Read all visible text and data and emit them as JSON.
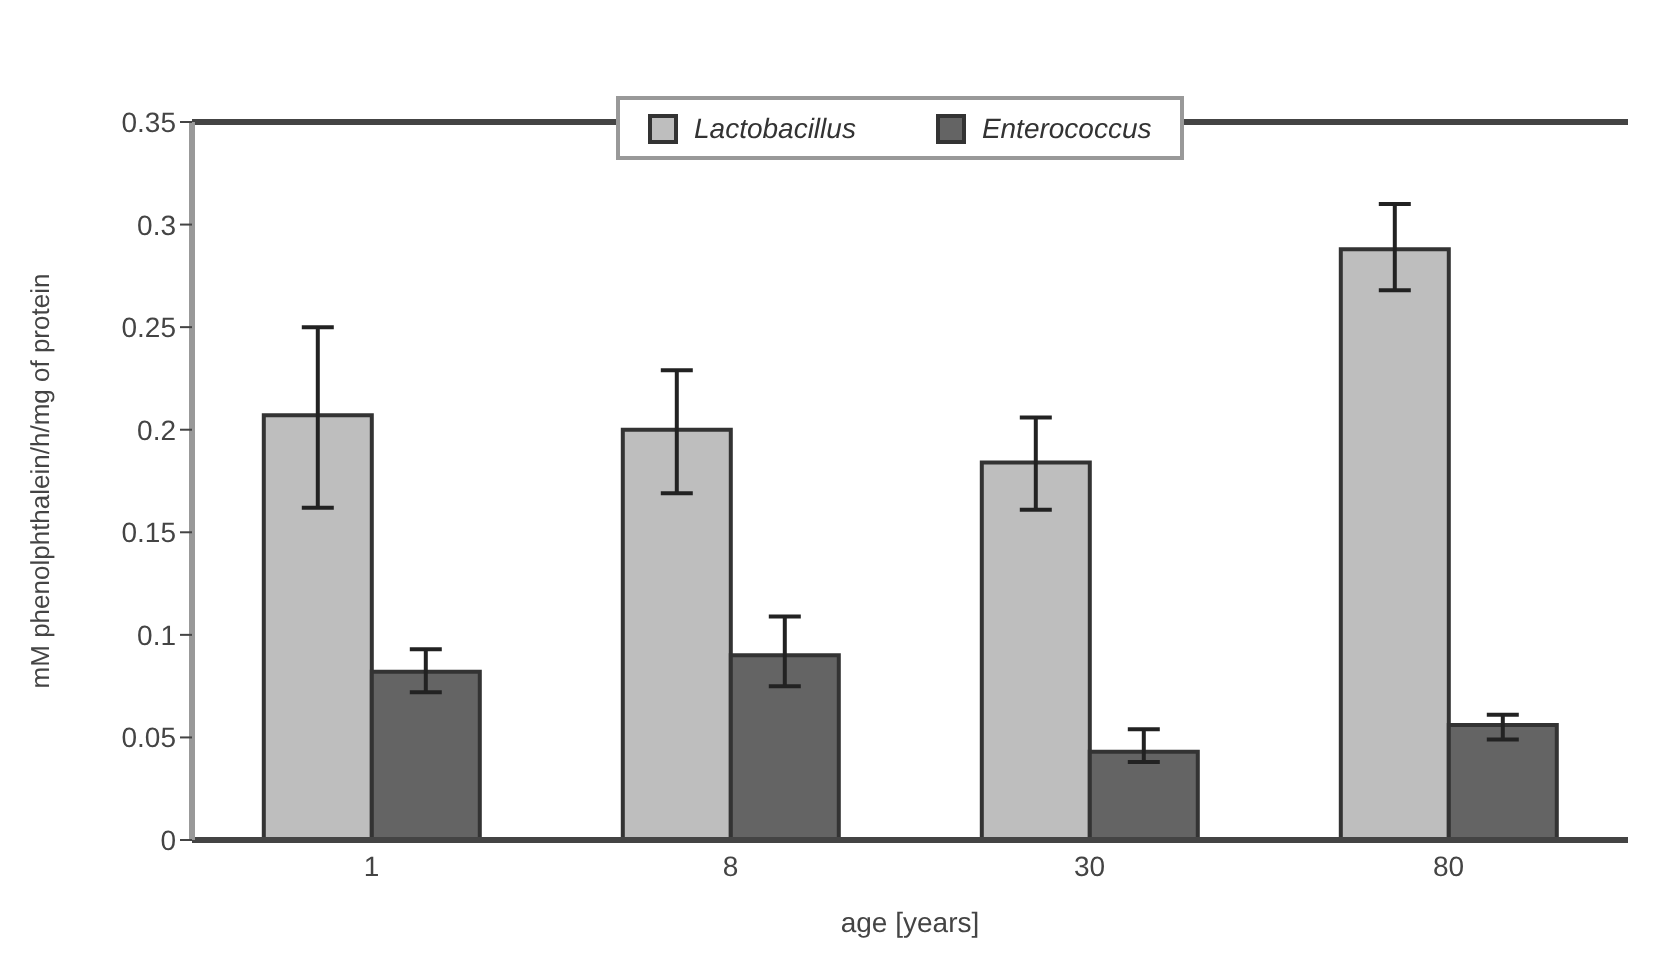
{
  "chart_data": {
    "type": "bar",
    "xlabel": "age [years]",
    "ylabel": "mM phenolphthalein/h/mg of protein",
    "categories": [
      "1",
      "8",
      "30",
      "80"
    ],
    "series": [
      {
        "name": "Lactobacillus",
        "color": "#bebebe",
        "values": [
          0.207,
          0.2,
          0.184,
          0.288
        ],
        "errors": [
          [
            0.162,
            0.25
          ],
          [
            0.169,
            0.229
          ],
          [
            0.161,
            0.206
          ],
          [
            0.268,
            0.31
          ]
        ]
      },
      {
        "name": "Enterococcus",
        "color": "#646464",
        "values": [
          0.082,
          0.09,
          0.043,
          0.056
        ],
        "errors": [
          [
            0.072,
            0.093
          ],
          [
            0.075,
            0.109
          ],
          [
            0.038,
            0.054
          ],
          [
            0.049,
            0.061
          ]
        ]
      }
    ],
    "ylim": [
      0,
      0.35
    ],
    "yticks": [
      0,
      0.05,
      0.1,
      0.15,
      0.2,
      0.25,
      0.3,
      0.35
    ],
    "grid": false,
    "legend": "top"
  }
}
